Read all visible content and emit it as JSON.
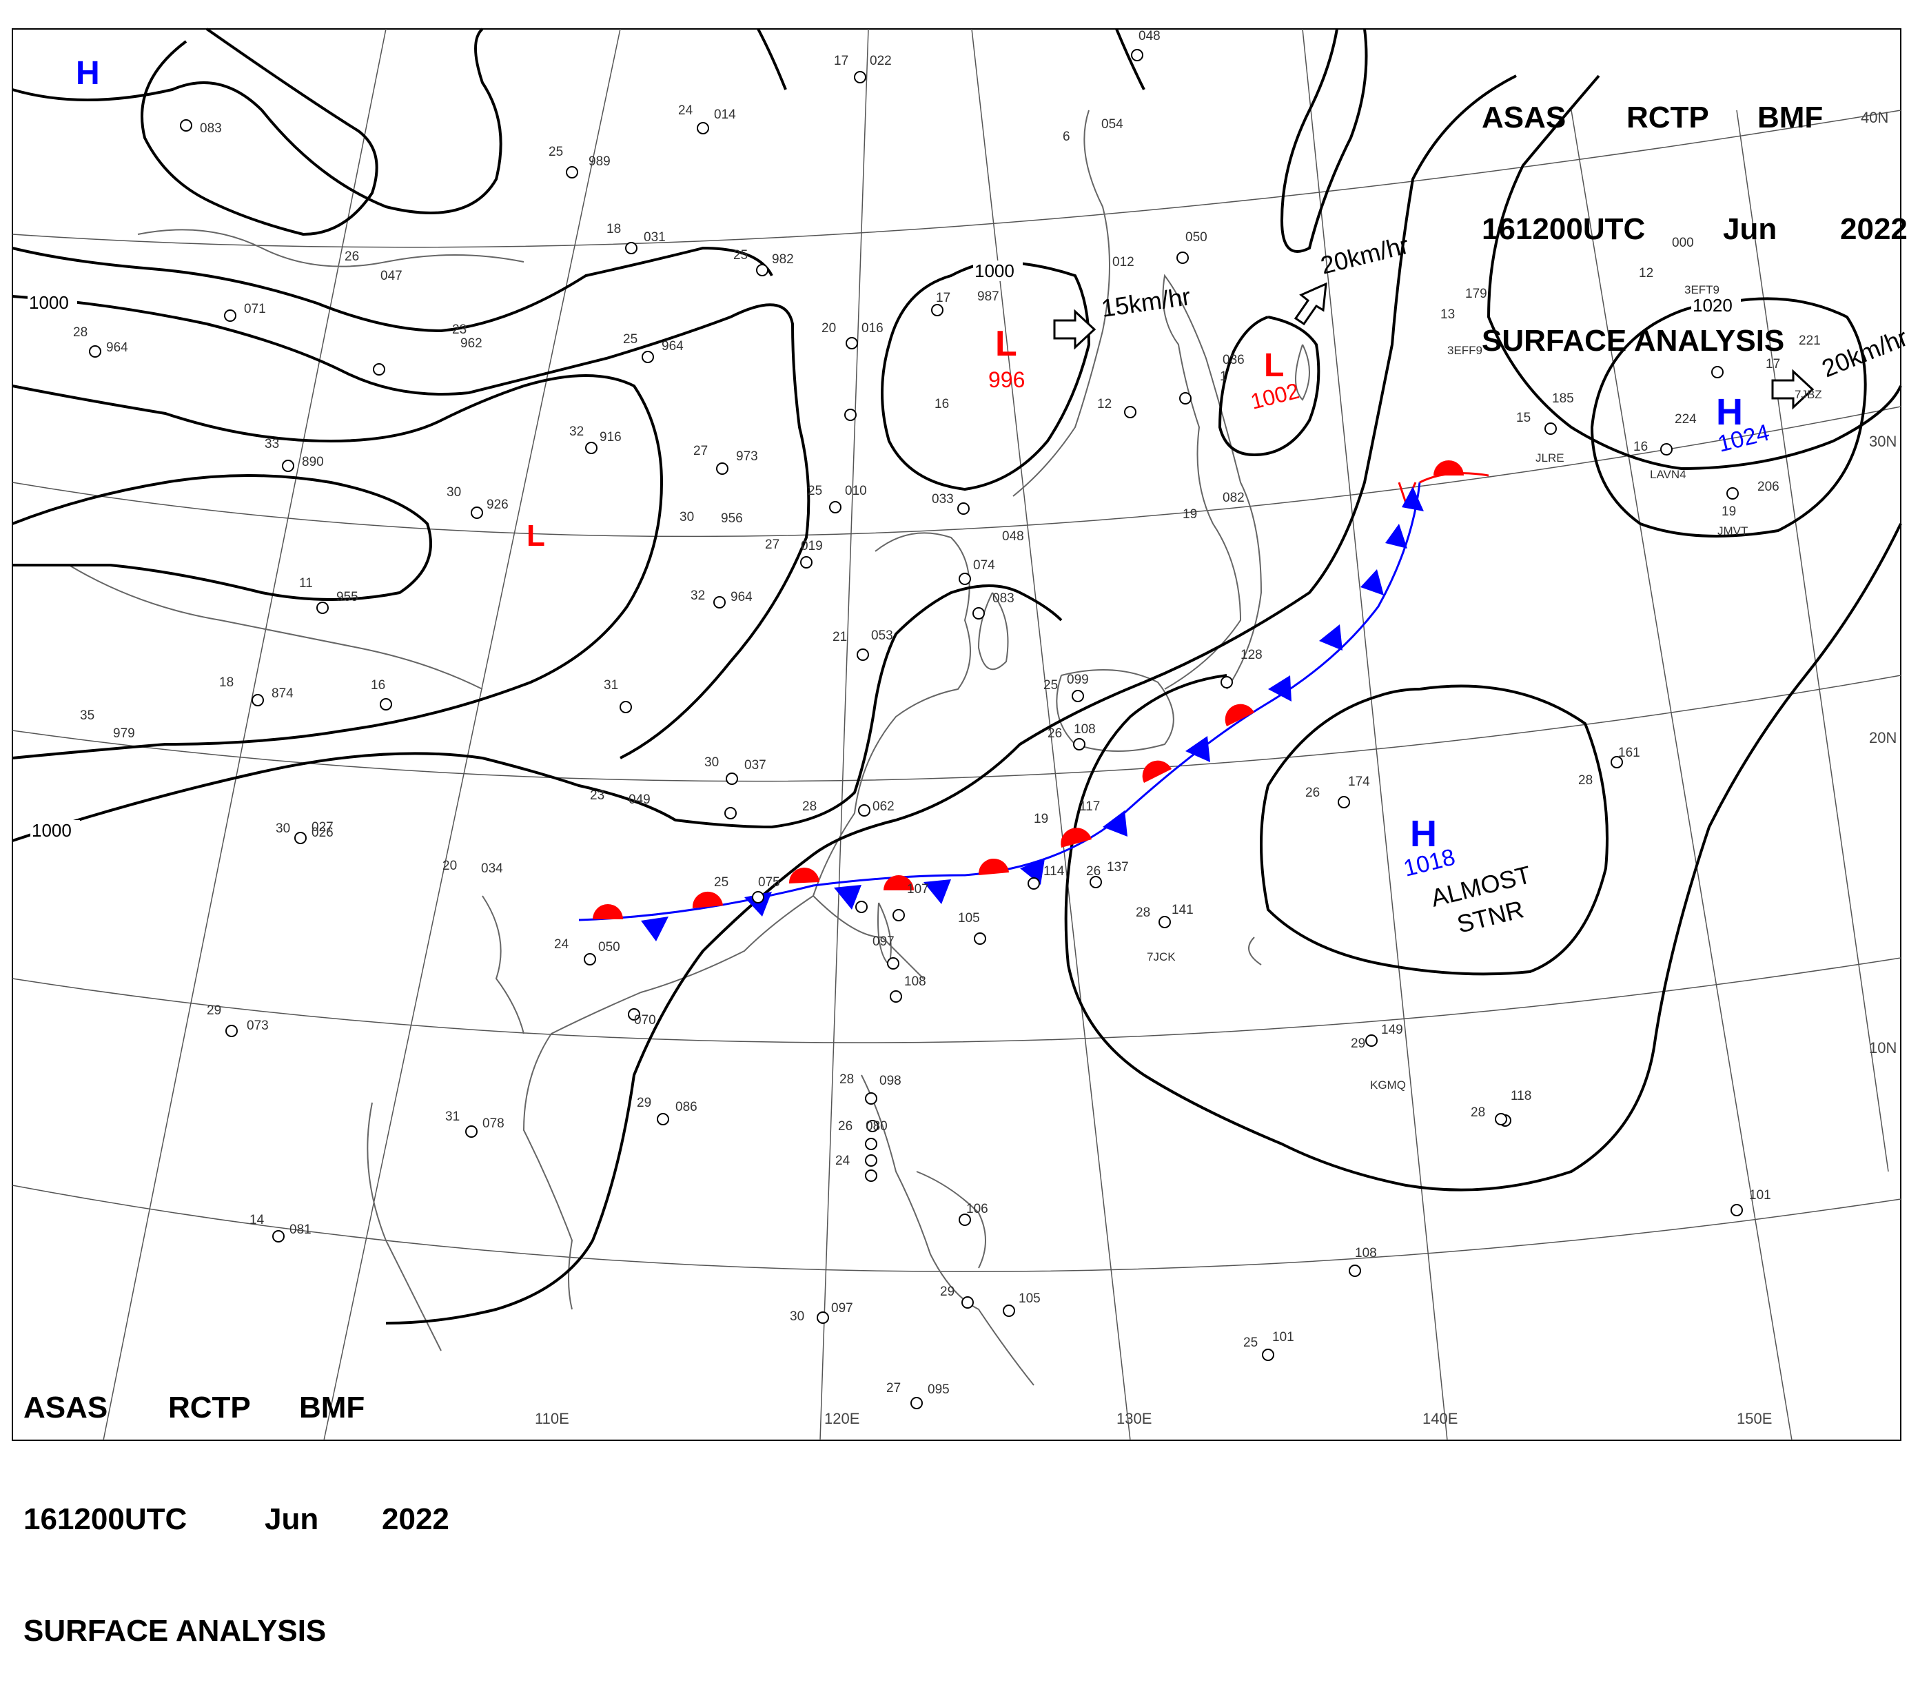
{
  "header": {
    "agency": "ASAS",
    "station": "RCTP",
    "code": "BMF",
    "time": "161200UTC",
    "month": "Jun",
    "year": "2022",
    "product": "SURFACE ANALYSIS"
  },
  "graticule": {
    "lon_labels": [
      "110E",
      "120E",
      "130E",
      "140E",
      "150E"
    ],
    "lat_labels": [
      "40N",
      "30N",
      "20N",
      "10N"
    ]
  },
  "isobar_labels": [
    "1000",
    "1000",
    "1000",
    "1020"
  ],
  "pressure_centers": [
    {
      "type": "H",
      "value": "",
      "color": "#0000ff"
    },
    {
      "type": "L",
      "value": "",
      "color": "#ff0000"
    },
    {
      "type": "L",
      "value": "996",
      "color": "#ff0000"
    },
    {
      "type": "L",
      "value": "1002",
      "color": "#ff0000"
    },
    {
      "type": "H",
      "value": "1024",
      "color": "#0000ff"
    },
    {
      "type": "H",
      "value": "1018",
      "color": "#0000ff"
    }
  ],
  "annotations": {
    "stationary_note_1": "ALMOST",
    "stationary_note_2": "STNR"
  },
  "motion_vectors": [
    "15km/hr",
    "20km/hr",
    "20km/hr"
  ],
  "front": {
    "type": "stationary",
    "warm_color": "#ff0000",
    "cold_color": "#0000ff"
  },
  "station_values": [
    "022",
    "014",
    "989",
    "031",
    "982",
    "964",
    "016",
    "987",
    "012",
    "054",
    "048",
    "050",
    "083",
    "071",
    "047",
    "964",
    "962",
    "916",
    "890",
    "926",
    "973",
    "956",
    "010",
    "033",
    "048",
    "074",
    "083",
    "019",
    "964",
    "955",
    "874",
    "979",
    "026",
    "037",
    "049",
    "053",
    "062",
    "075",
    "107",
    "105",
    "097",
    "108",
    "027",
    "034",
    "050",
    "070",
    "073",
    "086",
    "078",
    "098",
    "080",
    "081",
    "097",
    "095",
    "105",
    "106",
    "114",
    "117",
    "137",
    "141",
    "099",
    "108",
    "128",
    "174",
    "161",
    "149",
    "118",
    "101",
    "108",
    "101",
    "179",
    "185",
    "224",
    "221",
    "206",
    "000",
    "036",
    "082"
  ],
  "station_temps": [
    "17",
    "24",
    "25",
    "18",
    "25",
    "20",
    "17",
    "16",
    "12",
    "6",
    "26",
    "28",
    "23",
    "25",
    "32",
    "33",
    "30",
    "27",
    "30",
    "25",
    "27",
    "32",
    "11",
    "18",
    "16",
    "31",
    "35",
    "30",
    "21",
    "30",
    "23",
    "28",
    "20",
    "25",
    "29",
    "24",
    "29",
    "31",
    "30",
    "27",
    "28",
    "26",
    "24",
    "14",
    "29",
    "19",
    "26",
    "28",
    "25",
    "26",
    "29",
    "26",
    "28",
    "25",
    "13",
    "15",
    "12",
    "16",
    "17",
    "19",
    "19",
    "1",
    "28"
  ],
  "ship_ids": [
    "LAVN4",
    "JLRE",
    "JMVT",
    "3EFT9",
    "7JCK",
    "KGMQ",
    "7JBZ",
    "3EFF9"
  ]
}
